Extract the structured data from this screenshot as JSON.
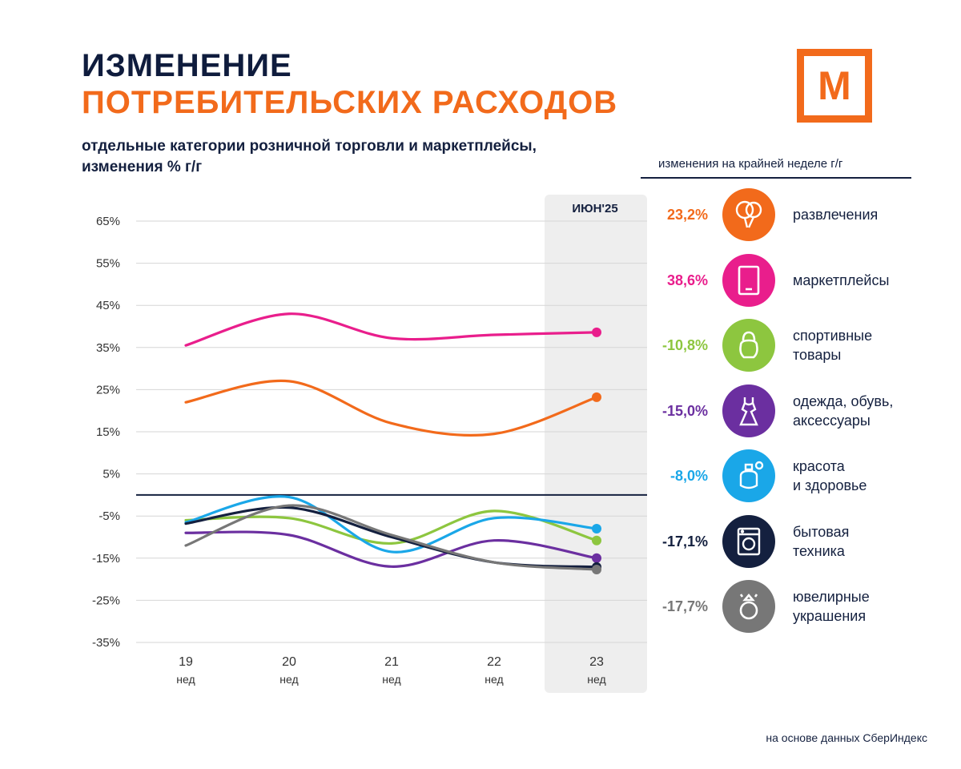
{
  "header": {
    "title_line1": "ИЗМЕНЕНИЕ",
    "title_line2": "ПОТРЕБИТЕЛЬСКИХ РАСХОДОВ",
    "subtitle_line1": "отдельные категории розничной торговли и маркетплейсы,",
    "subtitle_line2": "изменения % г/г",
    "logo_letter": "M"
  },
  "legend_panel": {
    "header": "изменения на крайней неделе г/г",
    "items": [
      {
        "label_line1": "развлечения",
        "label_line2": "",
        "value": "23,2%",
        "color": "#f26a1b",
        "icon": "balloons-icon"
      },
      {
        "label_line1": "маркетплейсы",
        "label_line2": "",
        "value": "38,6%",
        "color": "#e91e8c",
        "icon": "tablet-icon"
      },
      {
        "label_line1": "спортивные",
        "label_line2": "товары",
        "value": "-10,8%",
        "color": "#8dc63f",
        "icon": "kettlebell-icon"
      },
      {
        "label_line1": "одежда, обувь,",
        "label_line2": "аксессуары",
        "value": "-15,0%",
        "color": "#6b2fa0",
        "icon": "dress-icon"
      },
      {
        "label_line1": "красота",
        "label_line2": "и здоровье",
        "value": "-8,0%",
        "color": "#1aa7e8",
        "icon": "perfume-icon"
      },
      {
        "label_line1": "бытовая",
        "label_line2": "техника",
        "value": "-17,1%",
        "color": "#14203f",
        "icon": "washing-machine-icon"
      },
      {
        "label_line1": "ювелирные",
        "label_line2": "украшения",
        "value": "-17,7%",
        "color": "#777777",
        "icon": "ring-icon"
      }
    ]
  },
  "chart_data": {
    "type": "line",
    "title": "ИЗМЕНЕНИЕ ПОТРЕБИТЕЛЬСКИХ РАСХОДОВ",
    "ylabel": "% г/г",
    "ylim": [
      -35,
      65
    ],
    "y_ticks": [
      65,
      55,
      45,
      35,
      25,
      15,
      5,
      -5,
      -15,
      -25,
      -35
    ],
    "y_tick_labels": [
      "65%",
      "55%",
      "45%",
      "35%",
      "25%",
      "15%",
      "5%",
      "-5%",
      "-15%",
      "-25%",
      "-35%"
    ],
    "x": [
      19,
      20,
      21,
      22,
      23
    ],
    "x_tick_labels": [
      "19",
      "20",
      "21",
      "22",
      "23"
    ],
    "x_tick_sublabel": "нед",
    "highlight_label": "ИЮН'25",
    "highlight_category": 23,
    "zero_line": 0,
    "series": [
      {
        "name": "маркетплейсы",
        "color": "#e91e8c",
        "values": [
          35.5,
          43,
          37.2,
          38,
          38.6
        ]
      },
      {
        "name": "развлечения",
        "color": "#f26a1b",
        "values": [
          22,
          27,
          17,
          14.5,
          23.2
        ]
      },
      {
        "name": "спортивные товары",
        "color": "#8dc63f",
        "values": [
          -6,
          -5.5,
          -11.5,
          -3.8,
          -10.8
        ]
      },
      {
        "name": "красота и здоровье",
        "color": "#1aa7e8",
        "values": [
          -6.5,
          -0.5,
          -13.5,
          -5.5,
          -8.0
        ]
      },
      {
        "name": "одежда, обувь, аксессуары",
        "color": "#6b2fa0",
        "values": [
          -9,
          -9.5,
          -17,
          -10.8,
          -15.0
        ]
      },
      {
        "name": "бытовая техника",
        "color": "#14203f",
        "values": [
          -6.8,
          -3,
          -10,
          -16,
          -17.1
        ]
      },
      {
        "name": "ювелирные украшения",
        "color": "#777777",
        "values": [
          -12,
          -2.5,
          -9.5,
          -16,
          -17.7
        ]
      }
    ]
  },
  "footer": {
    "source": "на основе данных СберИндекс"
  }
}
